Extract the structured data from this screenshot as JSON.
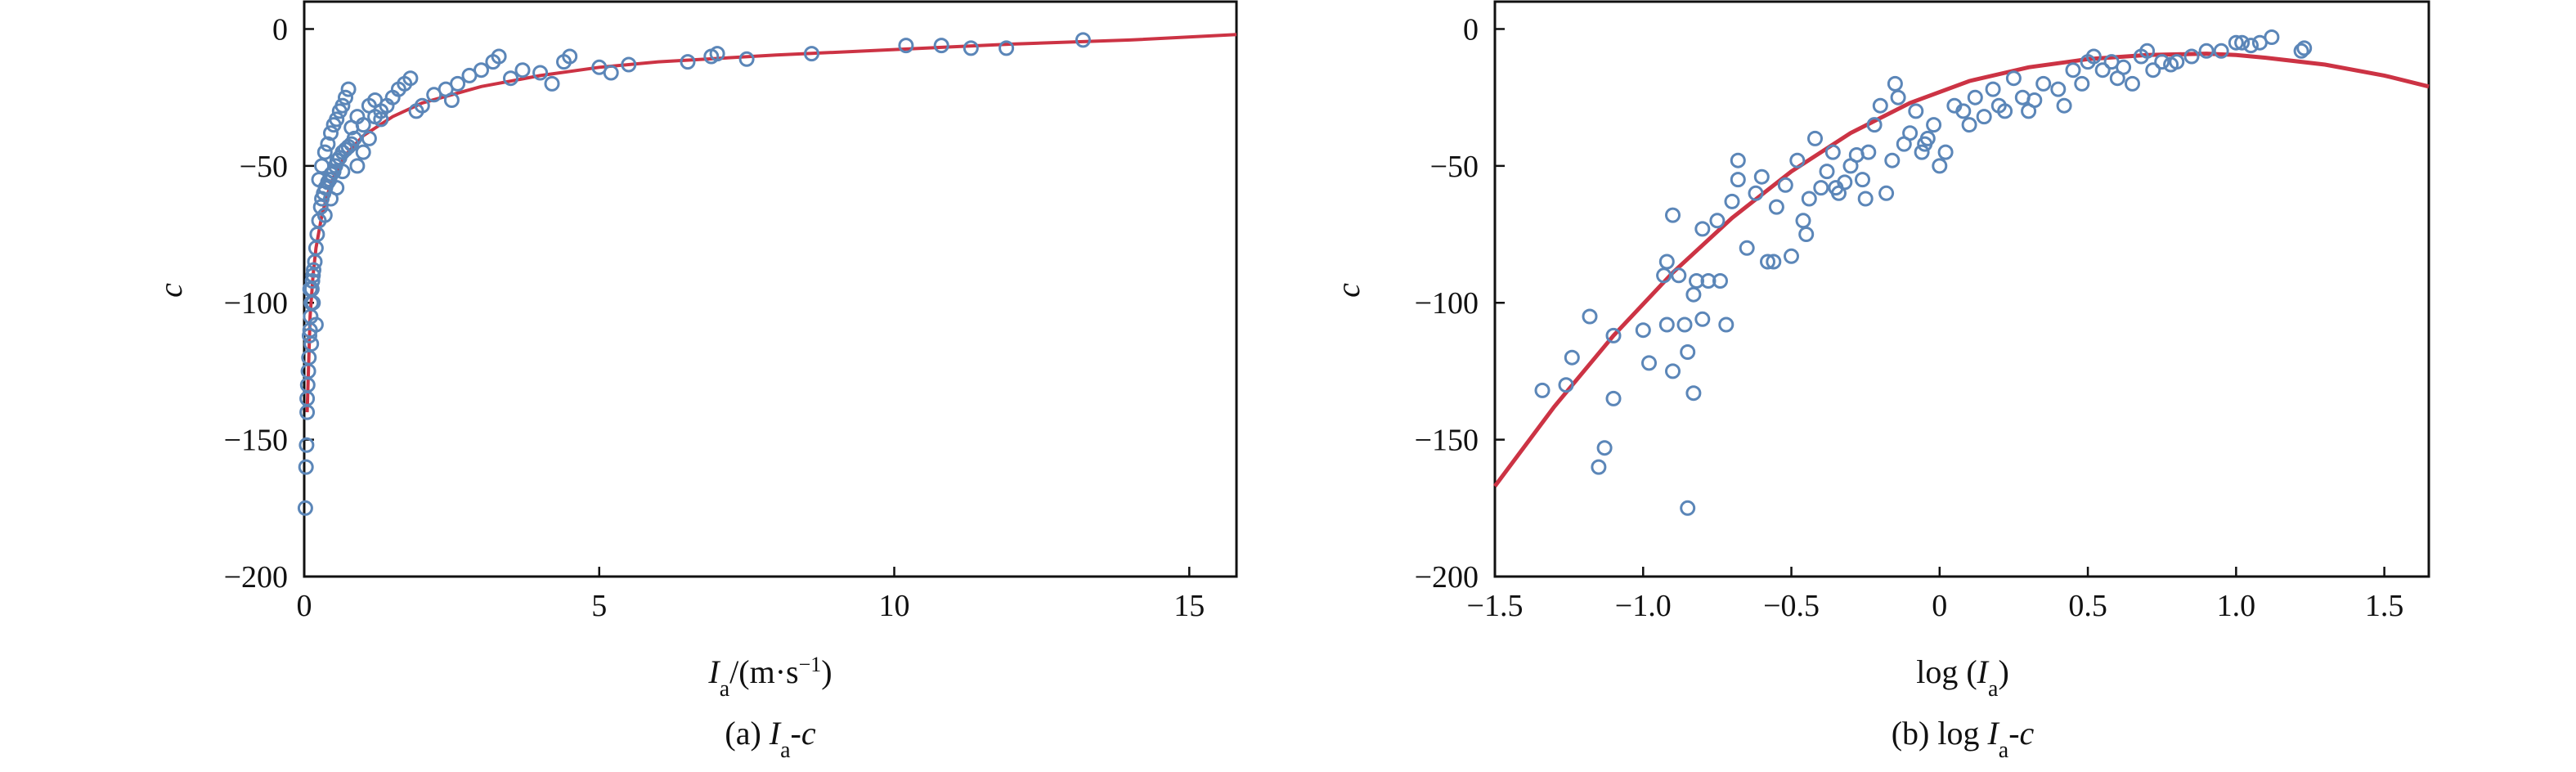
{
  "colors": {
    "marker": "#5b86b8",
    "curve": "#cc3344",
    "axis": "#111111"
  },
  "chart_data": [
    {
      "type": "scatter",
      "panel_caption_prefix": "(a) ",
      "panel_caption_main": "I",
      "panel_caption_sub": "a",
      "panel_caption_suffix": "-c",
      "xlabel_main": "I",
      "xlabel_sub": "a",
      "xlabel_units": "/(m·s",
      "xlabel_sup": "−1",
      "xlabel_close": ")",
      "ylabel": "c",
      "xlim": [
        0,
        15.8
      ],
      "ylim": [
        -200,
        10
      ],
      "xticks": [
        0,
        5,
        10,
        15
      ],
      "xtick_labels": [
        "0",
        "5",
        "10",
        "15"
      ],
      "yticks": [
        0,
        -50,
        -100,
        -150,
        -200
      ],
      "ytick_labels": [
        "0",
        "−50",
        "−100",
        "−150",
        "−200"
      ],
      "grid": false,
      "points": [
        [
          0.02,
          -175
        ],
        [
          0.03,
          -160
        ],
        [
          0.04,
          -152
        ],
        [
          0.05,
          -135
        ],
        [
          0.06,
          -130
        ],
        [
          0.07,
          -125
        ],
        [
          0.08,
          -120
        ],
        [
          0.09,
          -112
        ],
        [
          0.1,
          -110
        ],
        [
          0.11,
          -105
        ],
        [
          0.12,
          -100
        ],
        [
          0.13,
          -95
        ],
        [
          0.14,
          -92
        ],
        [
          0.15,
          -90
        ],
        [
          0.16,
          -88
        ],
        [
          0.18,
          -85
        ],
        [
          0.2,
          -80
        ],
        [
          0.22,
          -75
        ],
        [
          0.25,
          -70
        ],
        [
          0.28,
          -65
        ],
        [
          0.3,
          -62
        ],
        [
          0.33,
          -60
        ],
        [
          0.36,
          -58
        ],
        [
          0.4,
          -56
        ],
        [
          0.43,
          -55
        ],
        [
          0.46,
          -53
        ],
        [
          0.5,
          -52
        ],
        [
          0.53,
          -50
        ],
        [
          0.56,
          -48
        ],
        [
          0.6,
          -47
        ],
        [
          0.65,
          -45
        ],
        [
          0.7,
          -44
        ],
        [
          0.75,
          -43
        ],
        [
          0.8,
          -42
        ],
        [
          0.85,
          -40
        ],
        [
          0.25,
          -55
        ],
        [
          0.3,
          -50
        ],
        [
          0.35,
          -45
        ],
        [
          0.4,
          -42
        ],
        [
          0.45,
          -38
        ],
        [
          0.5,
          -35
        ],
        [
          0.55,
          -33
        ],
        [
          0.6,
          -30
        ],
        [
          0.65,
          -28
        ],
        [
          0.7,
          -25
        ],
        [
          0.75,
          -22
        ],
        [
          0.35,
          -68
        ],
        [
          0.45,
          -62
        ],
        [
          0.55,
          -58
        ],
        [
          0.65,
          -52
        ],
        [
          0.9,
          -50
        ],
        [
          1.0,
          -45
        ],
        [
          1.1,
          -40
        ],
        [
          1.0,
          -35
        ],
        [
          1.2,
          -32
        ],
        [
          1.3,
          -30
        ],
        [
          1.4,
          -28
        ],
        [
          1.5,
          -25
        ],
        [
          1.6,
          -22
        ],
        [
          1.7,
          -20
        ],
        [
          1.8,
          -18
        ],
        [
          1.9,
          -30
        ],
        [
          2.0,
          -28
        ],
        [
          2.2,
          -24
        ],
        [
          2.4,
          -22
        ],
        [
          2.5,
          -26
        ],
        [
          2.6,
          -20
        ],
        [
          2.8,
          -17
        ],
        [
          3.0,
          -15
        ],
        [
          3.2,
          -12
        ],
        [
          3.3,
          -10
        ],
        [
          3.5,
          -18
        ],
        [
          3.7,
          -15
        ],
        [
          4.0,
          -16
        ],
        [
          4.2,
          -20
        ],
        [
          4.4,
          -12
        ],
        [
          4.5,
          -10
        ],
        [
          5.0,
          -14
        ],
        [
          5.2,
          -16
        ],
        [
          5.5,
          -13
        ],
        [
          6.5,
          -12
        ],
        [
          6.9,
          -10
        ],
        [
          7.0,
          -9
        ],
        [
          7.5,
          -11
        ],
        [
          8.6,
          -9
        ],
        [
          10.2,
          -6
        ],
        [
          10.8,
          -6
        ],
        [
          11.3,
          -7
        ],
        [
          11.9,
          -7
        ],
        [
          13.2,
          -4
        ],
        [
          1.1,
          -28
        ],
        [
          1.2,
          -26
        ],
        [
          1.3,
          -33
        ],
        [
          0.8,
          -36
        ],
        [
          0.9,
          -32
        ],
        [
          0.15,
          -100
        ],
        [
          0.1,
          -95
        ],
        [
          0.12,
          -115
        ],
        [
          0.2,
          -108
        ],
        [
          0.05,
          -140
        ]
      ],
      "curve": [
        [
          0.05,
          -140
        ],
        [
          0.1,
          -105
        ],
        [
          0.15,
          -90
        ],
        [
          0.2,
          -80
        ],
        [
          0.3,
          -68
        ],
        [
          0.4,
          -60
        ],
        [
          0.5,
          -54
        ],
        [
          0.7,
          -46
        ],
        [
          1.0,
          -39
        ],
        [
          1.5,
          -32
        ],
        [
          2.0,
          -27
        ],
        [
          3.0,
          -21
        ],
        [
          4.0,
          -17
        ],
        [
          5.0,
          -14
        ],
        [
          6.0,
          -12
        ],
        [
          8.0,
          -9.5
        ],
        [
          10.0,
          -7.5
        ],
        [
          12.0,
          -5.5
        ],
        [
          14.0,
          -4
        ],
        [
          15.8,
          -2
        ]
      ]
    },
    {
      "type": "scatter",
      "panel_caption_prefix": "(b) log ",
      "panel_caption_main": "I",
      "panel_caption_sub": "a",
      "panel_caption_suffix": "-c",
      "xlabel_main": "log (",
      "xlabel_italic": "I",
      "xlabel_sub": "a",
      "xlabel_close": ")",
      "ylabel": "c",
      "xlim": [
        -1.5,
        1.65
      ],
      "ylim": [
        -200,
        10
      ],
      "xticks": [
        -1.5,
        -1.0,
        -0.5,
        0,
        0.5,
        1.0,
        1.5
      ],
      "xtick_labels": [
        "−1.5",
        "−1.0",
        "−0.5",
        "0",
        "0.5",
        "1.0",
        "1.5"
      ],
      "yticks": [
        0,
        -50,
        -100,
        -150,
        -200
      ],
      "ytick_labels": [
        "0",
        "−50",
        "−100",
        "−150",
        "−200"
      ],
      "grid": false,
      "points": [
        [
          -1.34,
          -132
        ],
        [
          -1.26,
          -130
        ],
        [
          -1.24,
          -120
        ],
        [
          -1.18,
          -105
        ],
        [
          -1.15,
          -160
        ],
        [
          -1.13,
          -153
        ],
        [
          -1.1,
          -135
        ],
        [
          -1.1,
          -112
        ],
        [
          -1.0,
          -110
        ],
        [
          -0.98,
          -122
        ],
        [
          -0.93,
          -90
        ],
        [
          -0.92,
          -85
        ],
        [
          -0.92,
          -108
        ],
        [
          -0.9,
          -125
        ],
        [
          -0.9,
          -68
        ],
        [
          -0.88,
          -90
        ],
        [
          -0.86,
          -108
        ],
        [
          -0.85,
          -175
        ],
        [
          -0.85,
          -118
        ],
        [
          -0.83,
          -133
        ],
        [
          -0.83,
          -97
        ],
        [
          -0.82,
          -92
        ],
        [
          -0.8,
          -106
        ],
        [
          -0.8,
          -73
        ],
        [
          -0.78,
          -92
        ],
        [
          -0.75,
          -70
        ],
        [
          -0.74,
          -92
        ],
        [
          -0.72,
          -108
        ],
        [
          -0.7,
          -63
        ],
        [
          -0.68,
          -48
        ],
        [
          -0.65,
          -80
        ],
        [
          -0.62,
          -60
        ],
        [
          -0.6,
          -54
        ],
        [
          -0.58,
          -85
        ],
        [
          -0.55,
          -65
        ],
        [
          -0.52,
          -57
        ],
        [
          -0.5,
          -83
        ],
        [
          -0.48,
          -48
        ],
        [
          -0.46,
          -70
        ],
        [
          -0.44,
          -62
        ],
        [
          -0.42,
          -40
        ],
        [
          -0.4,
          -58
        ],
        [
          -0.38,
          -52
        ],
        [
          -0.36,
          -45
        ],
        [
          -0.34,
          -60
        ],
        [
          -0.32,
          -56
        ],
        [
          -0.3,
          -50
        ],
        [
          -0.28,
          -46
        ],
        [
          -0.26,
          -55
        ],
        [
          -0.24,
          -45
        ],
        [
          -0.22,
          -35
        ],
        [
          -0.2,
          -28
        ],
        [
          -0.18,
          -60
        ],
        [
          -0.16,
          -48
        ],
        [
          -0.15,
          -20
        ],
        [
          -0.14,
          -25
        ],
        [
          -0.12,
          -42
        ],
        [
          -0.1,
          -38
        ],
        [
          -0.08,
          -30
        ],
        [
          -0.06,
          -45
        ],
        [
          -0.04,
          -40
        ],
        [
          -0.02,
          -35
        ],
        [
          0.0,
          -50
        ],
        [
          0.02,
          -45
        ],
        [
          0.05,
          -28
        ],
        [
          0.08,
          -30
        ],
        [
          0.1,
          -35
        ],
        [
          0.12,
          -25
        ],
        [
          0.15,
          -32
        ],
        [
          0.18,
          -22
        ],
        [
          0.2,
          -28
        ],
        [
          0.22,
          -30
        ],
        [
          0.25,
          -18
        ],
        [
          0.28,
          -25
        ],
        [
          0.3,
          -30
        ],
        [
          0.35,
          -20
        ],
        [
          0.4,
          -22
        ],
        [
          0.42,
          -28
        ],
        [
          0.45,
          -15
        ],
        [
          0.48,
          -20
        ],
        [
          0.5,
          -12
        ],
        [
          0.52,
          -10
        ],
        [
          0.55,
          -15
        ],
        [
          0.6,
          -18
        ],
        [
          0.62,
          -14
        ],
        [
          0.65,
          -20
        ],
        [
          0.68,
          -10
        ],
        [
          0.7,
          -8
        ],
        [
          0.72,
          -15
        ],
        [
          0.75,
          -12
        ],
        [
          0.8,
          -12
        ],
        [
          0.85,
          -10
        ],
        [
          0.9,
          -8
        ],
        [
          0.95,
          -8
        ],
        [
          1.0,
          -5
        ],
        [
          1.02,
          -5
        ],
        [
          1.05,
          -6
        ],
        [
          1.08,
          -5
        ],
        [
          1.12,
          -3
        ],
        [
          1.22,
          -8
        ],
        [
          1.23,
          -7
        ],
        [
          -0.45,
          -75
        ],
        [
          -0.35,
          -58
        ],
        [
          -0.25,
          -62
        ],
        [
          0.32,
          -26
        ],
        [
          0.58,
          -12
        ],
        [
          0.78,
          -13
        ],
        [
          -0.05,
          -42
        ],
        [
          -0.56,
          -85
        ],
        [
          -0.68,
          -55
        ]
      ],
      "curve": [
        [
          -1.5,
          -167
        ],
        [
          -1.3,
          -138
        ],
        [
          -1.1,
          -112
        ],
        [
          -0.9,
          -89
        ],
        [
          -0.7,
          -69
        ],
        [
          -0.5,
          -52
        ],
        [
          -0.3,
          -38
        ],
        [
          -0.1,
          -27
        ],
        [
          0.1,
          -19
        ],
        [
          0.3,
          -14
        ],
        [
          0.5,
          -11
        ],
        [
          0.7,
          -9.5
        ],
        [
          0.9,
          -9
        ],
        [
          1.0,
          -9.5
        ],
        [
          1.1,
          -10.5
        ],
        [
          1.3,
          -13
        ],
        [
          1.5,
          -17
        ],
        [
          1.65,
          -21
        ]
      ]
    }
  ]
}
